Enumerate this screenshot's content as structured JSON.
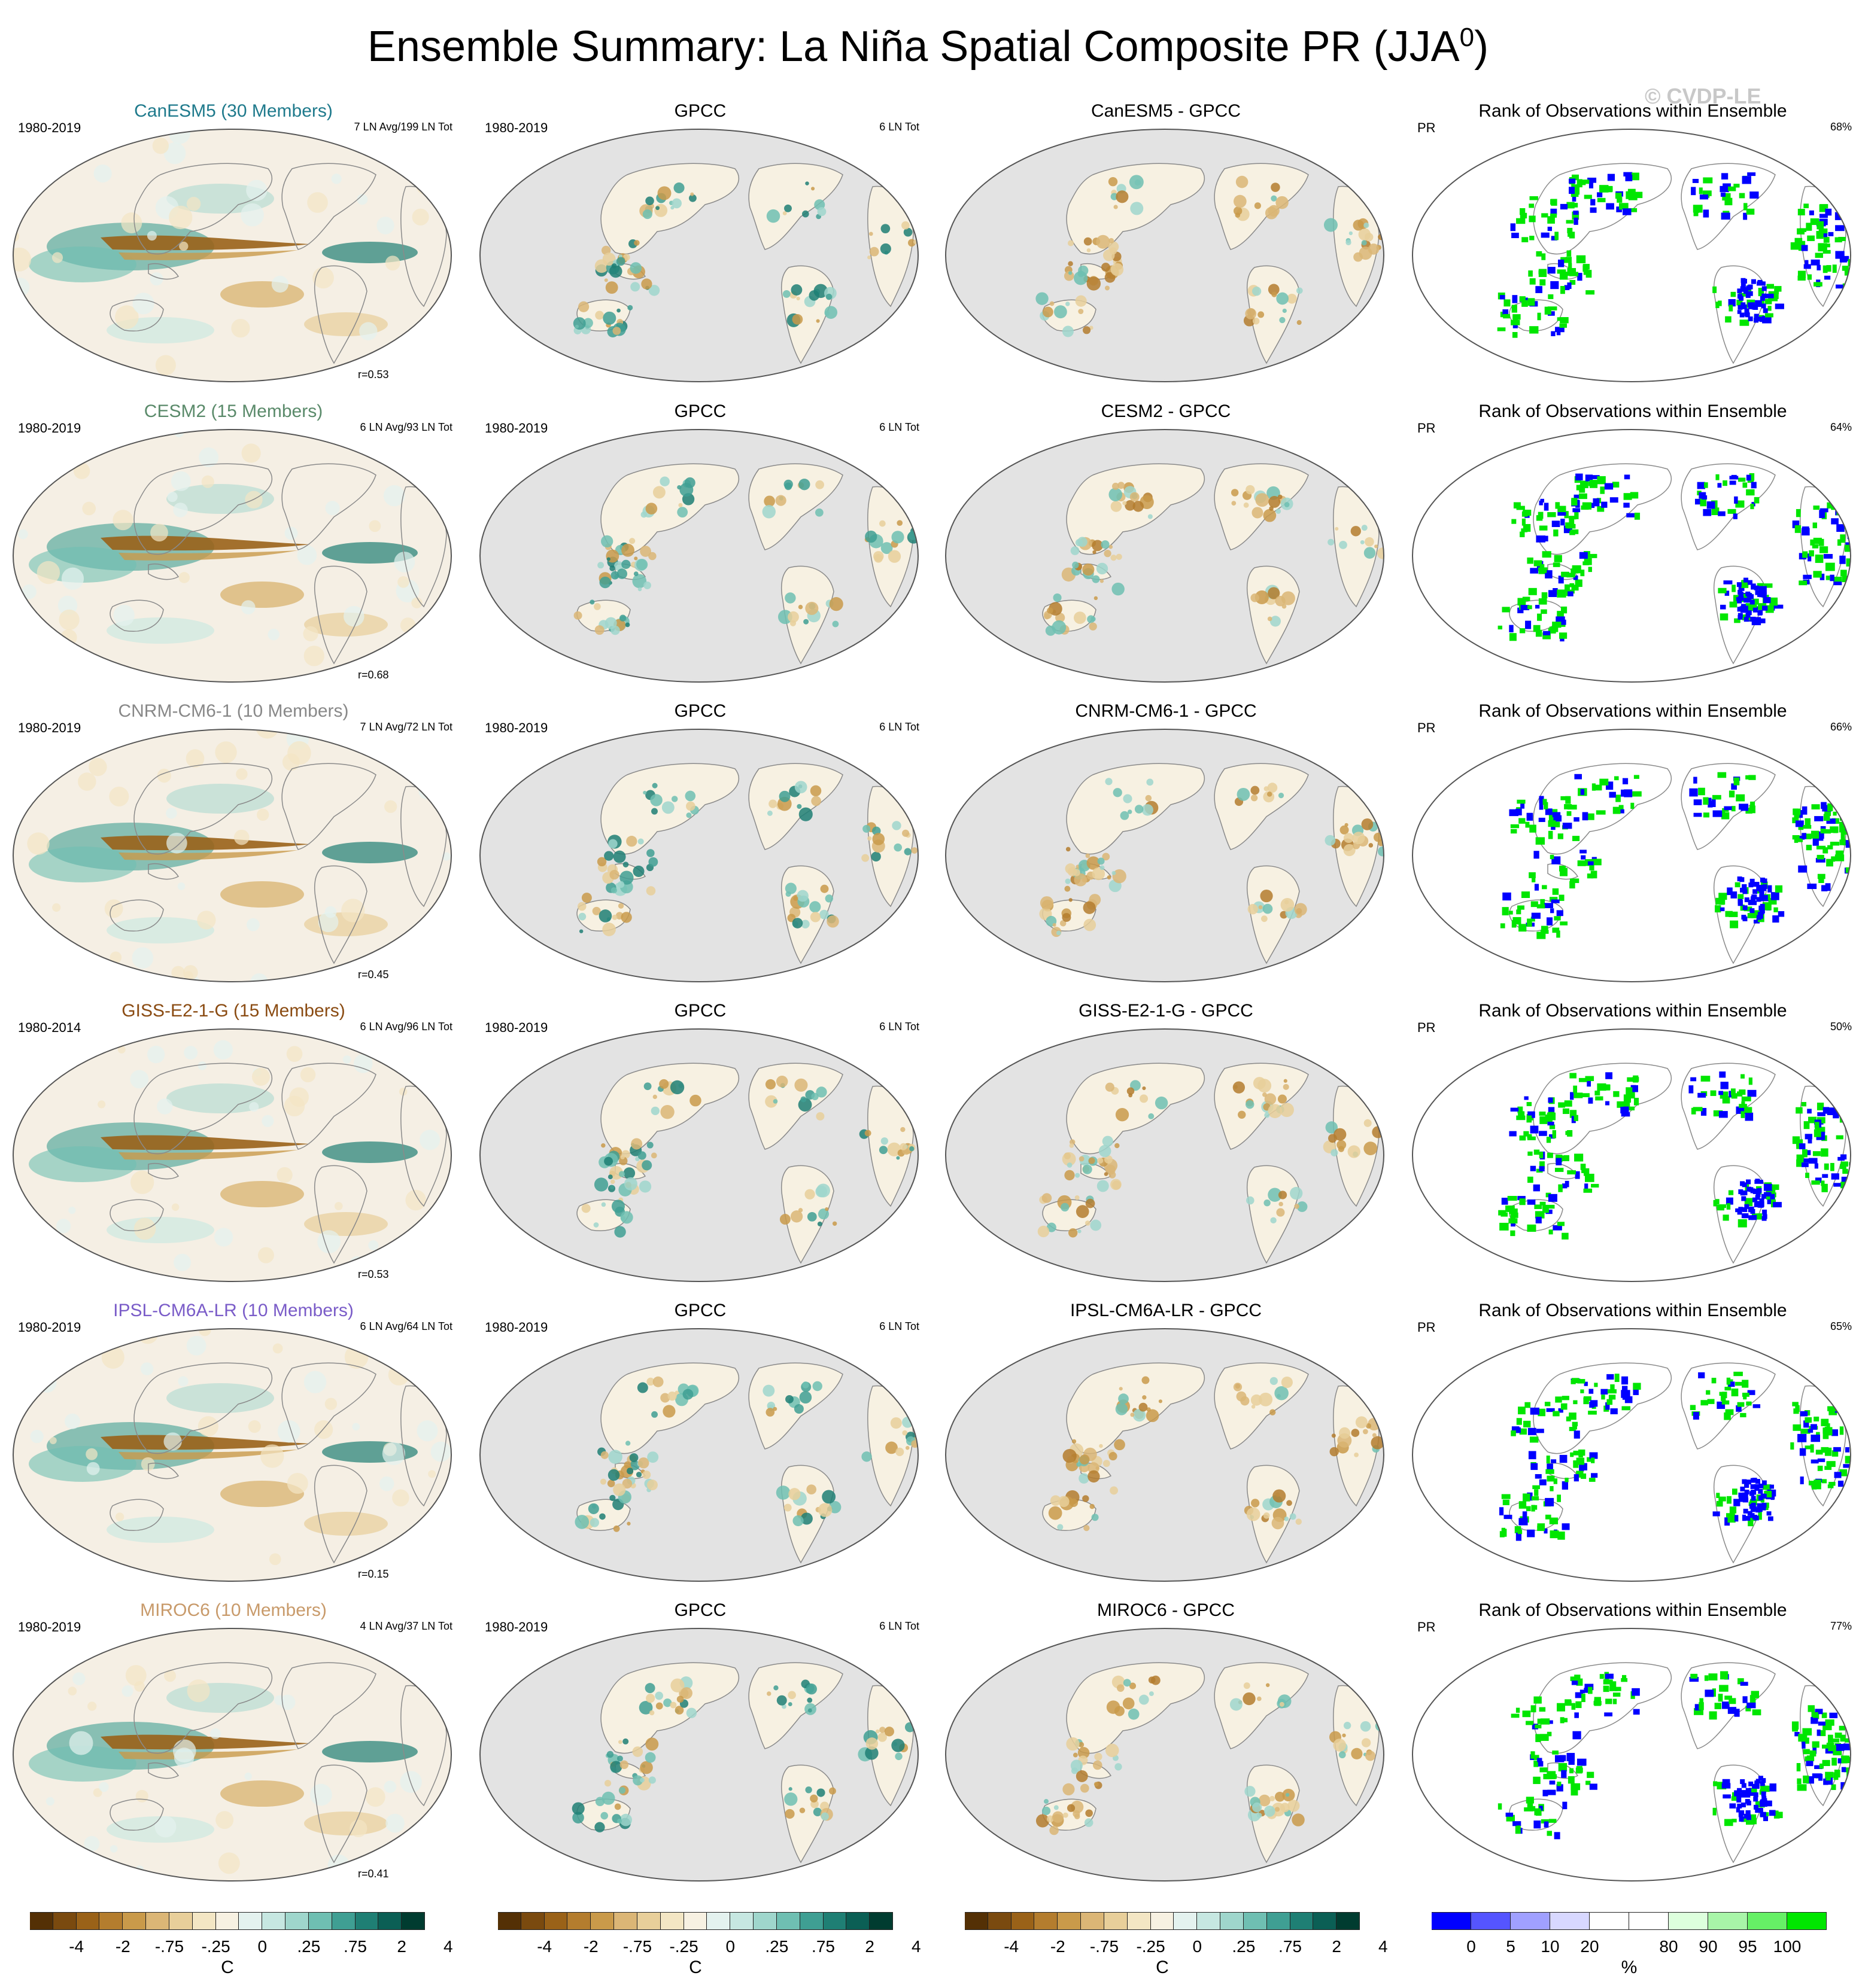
{
  "title": {
    "main": "Ensemble Summary: La Niña Spatial Composite PR (JJA",
    "sup": "0",
    "close": ")"
  },
  "copyright": "© CVDP-LE",
  "rows": [
    {
      "model_title": "CanESM5 (30 Members)",
      "color": "#1f7a8c",
      "period": "1980-2019",
      "count": "7 LN Avg/199 LN Tot",
      "r": "r=0.53",
      "obs_title": "GPCC",
      "obs_period": "1980-2019",
      "obs_count": "6 LN Tot",
      "diff_title": "CanESM5 - GPCC",
      "rank_title": "Rank of Observations within Ensemble",
      "rank_var": "PR",
      "rank_pct": "68%"
    },
    {
      "model_title": "CESM2 (15 Members)",
      "color": "#5a8a6a",
      "period": "1980-2019",
      "count": "6 LN Avg/93 LN Tot",
      "r": "r=0.68",
      "obs_title": "GPCC",
      "obs_period": "1980-2019",
      "obs_count": "6 LN Tot",
      "diff_title": "CESM2 - GPCC",
      "rank_title": "Rank of Observations within Ensemble",
      "rank_var": "PR",
      "rank_pct": "64%"
    },
    {
      "model_title": "CNRM-CM6-1 (10 Members)",
      "color": "#888888",
      "period": "1980-2019",
      "count": "7 LN Avg/72 LN Tot",
      "r": "r=0.45",
      "obs_title": "GPCC",
      "obs_period": "1980-2019",
      "obs_count": "6 LN Tot",
      "diff_title": "CNRM-CM6-1 - GPCC",
      "rank_title": "Rank of Observations within Ensemble",
      "rank_var": "PR",
      "rank_pct": "66%"
    },
    {
      "model_title": "GISS-E2-1-G (15 Members)",
      "color": "#8a4b12",
      "period": "1980-2014",
      "count": "6 LN Avg/96 LN Tot",
      "r": "r=0.53",
      "obs_title": "GPCC",
      "obs_period": "1980-2019",
      "obs_count": "6 LN Tot",
      "diff_title": "GISS-E2-1-G - GPCC",
      "rank_title": "Rank of Observations within Ensemble",
      "rank_var": "PR",
      "rank_pct": "50%"
    },
    {
      "model_title": "IPSL-CM6A-LR (10 Members)",
      "color": "#7a5cc8",
      "period": "1980-2019",
      "count": "6 LN Avg/64 LN Tot",
      "r": "r=0.15",
      "obs_title": "GPCC",
      "obs_period": "1980-2019",
      "obs_count": "6 LN Tot",
      "diff_title": "IPSL-CM6A-LR - GPCC",
      "rank_title": "Rank of Observations within Ensemble",
      "rank_var": "PR",
      "rank_pct": "65%"
    },
    {
      "model_title": "MIROC6 (10 Members)",
      "color": "#c89a6a",
      "period": "1980-2019",
      "count": "4 LN Avg/37 LN Tot",
      "r": "r=0.41",
      "obs_title": "GPCC",
      "obs_period": "1980-2019",
      "obs_count": "6 LN Tot",
      "diff_title": "MIROC6 - GPCC",
      "rank_title": "Rank of Observations within Ensemble",
      "rank_var": "PR",
      "rank_pct": "77%"
    }
  ],
  "colorbars": {
    "brbg": {
      "colors": [
        "#543005",
        "#7a4a0f",
        "#9a6218",
        "#b47d2e",
        "#c99a4a",
        "#dbb676",
        "#e8cf9a",
        "#f3e6c4",
        "#f7f1e2",
        "#e4f2ef",
        "#c6e7e1",
        "#9fd6cc",
        "#6fbfb2",
        "#3f9f93",
        "#1f7f74",
        "#0b5f55",
        "#003c30"
      ],
      "ticks": [
        "-4",
        "-2",
        "-.75",
        "-.25",
        "0",
        ".25",
        ".75",
        "2",
        "4"
      ],
      "unit": "C"
    },
    "rank": {
      "colors": [
        "#0000ff",
        "#5555ff",
        "#a0a0ff",
        "#d8d8ff",
        "#ffffff",
        "#ffffff",
        "#ddffdd",
        "#a8f5a8",
        "#66f066",
        "#00e600"
      ],
      "ticks": [
        "0",
        "5",
        "10",
        "20",
        "80",
        "90",
        "95",
        "100"
      ],
      "unit": "%"
    }
  }
}
